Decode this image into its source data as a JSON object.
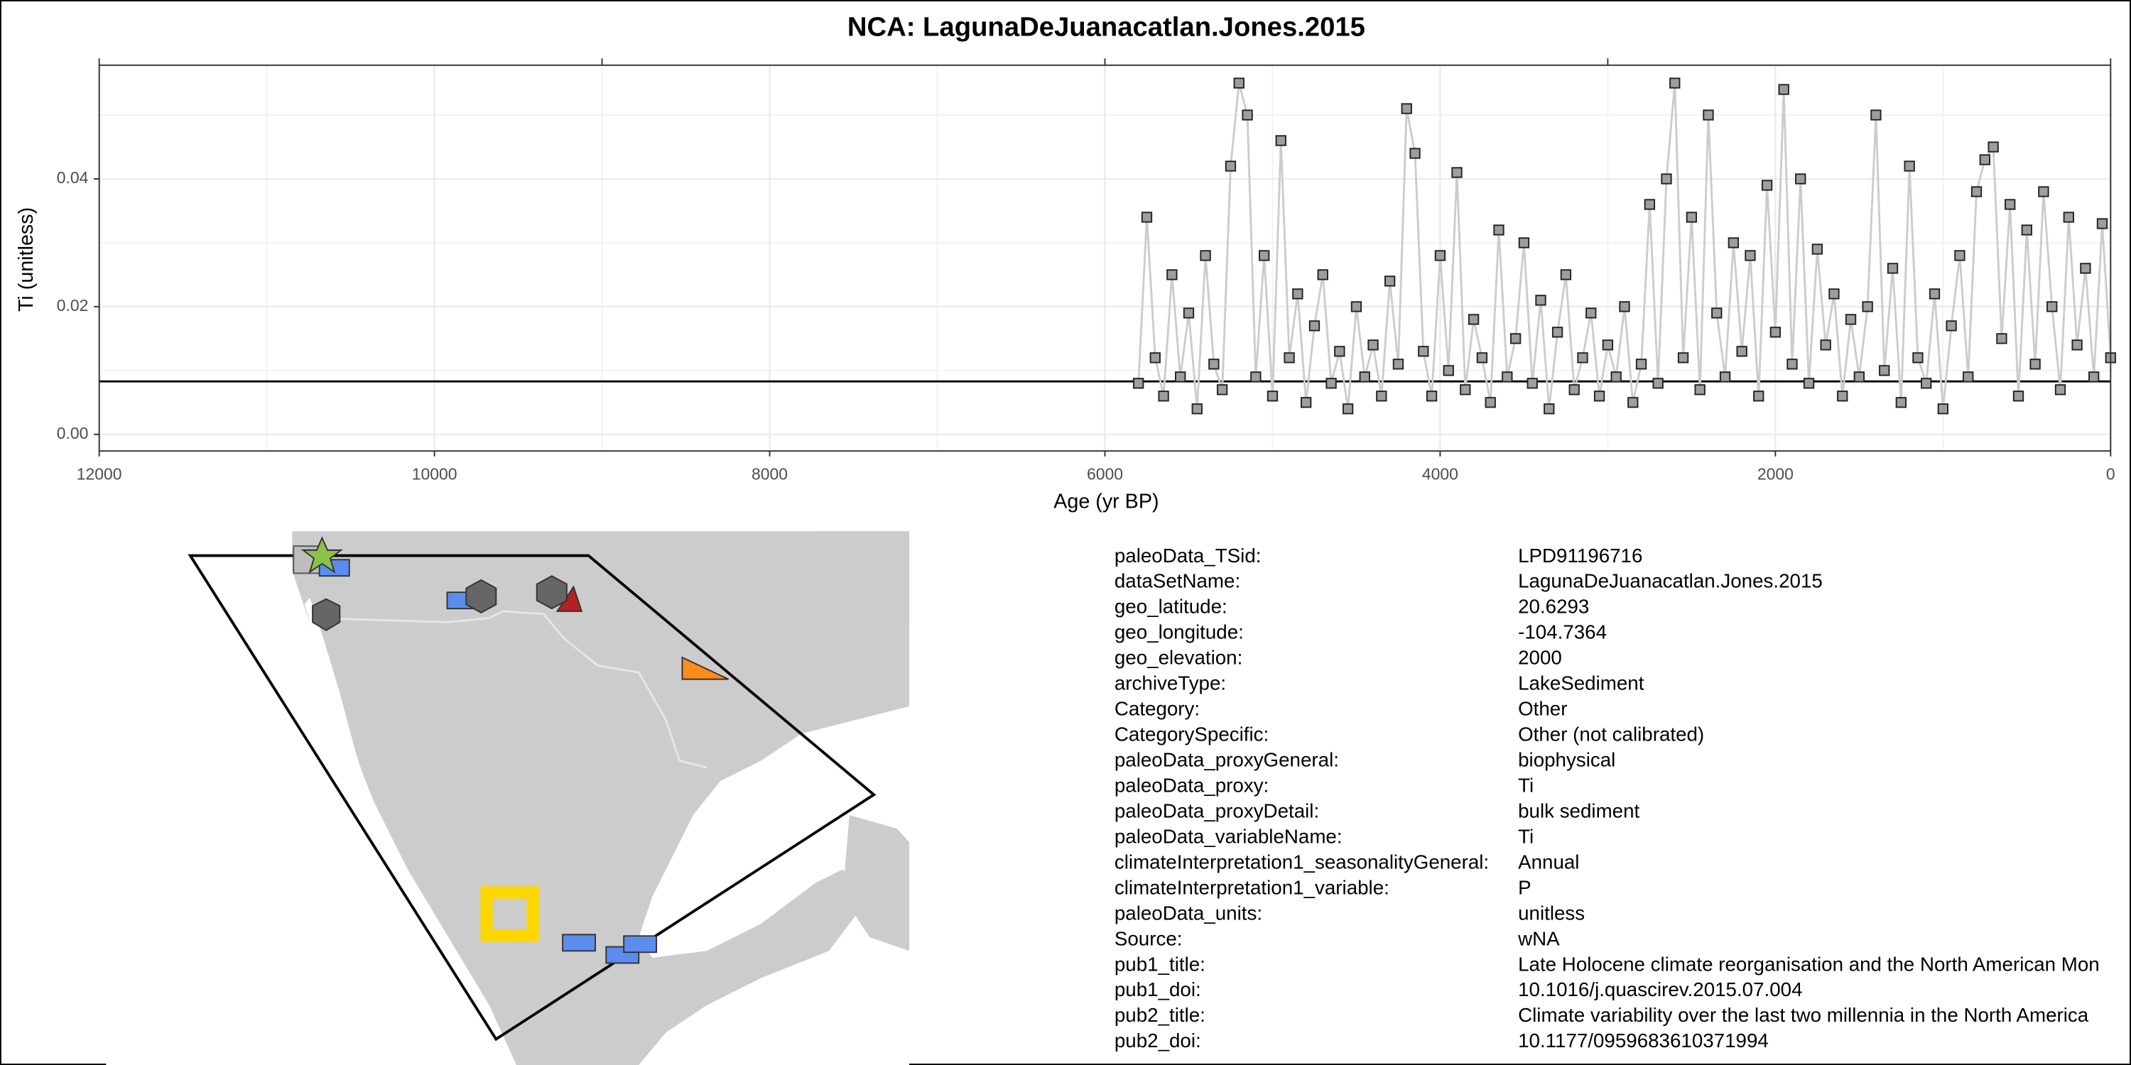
{
  "chart_data": {
    "type": "line",
    "title": "NCA: LagunaDeJuanacatlan.Jones.2015",
    "x_label": "Age (yr BP)",
    "y_label": "Ti (unitless)",
    "xlim": [
      12000,
      0
    ],
    "xticks": [
      12000,
      10000,
      8000,
      6000,
      4000,
      2000,
      0
    ],
    "top_ticks": [
      12000,
      9000,
      6000,
      3000,
      0
    ],
    "ylim": [
      -0.0026,
      0.0578
    ],
    "yticks": [
      {
        "value": 0,
        "label": "0.00"
      },
      0.02,
      0.04
    ],
    "grid": true,
    "line_color": "#cccccc",
    "color": "#9e9e9e",
    "hline": 0.0083,
    "x": [
      5800,
      5750,
      5700,
      5650,
      5600,
      5550,
      5500,
      5450,
      5400,
      5350,
      5300,
      5250,
      5200,
      5150,
      5100,
      5050,
      5000,
      4950,
      4900,
      4850,
      4800,
      4750,
      4700,
      4650,
      4600,
      4550,
      4500,
      4450,
      4400,
      4350,
      4300,
      4250,
      4200,
      4150,
      4100,
      4050,
      4000,
      3950,
      3900,
      3850,
      3800,
      3750,
      3700,
      3650,
      3600,
      3550,
      3500,
      3450,
      3400,
      3350,
      3300,
      3250,
      3200,
      3150,
      3100,
      3050,
      3000,
      2950,
      2900,
      2850,
      2800,
      2750,
      2700,
      2650,
      2600,
      2550,
      2500,
      2450,
      2400,
      2350,
      2300,
      2250,
      2200,
      2150,
      2100,
      2050,
      2000,
      1950,
      1900,
      1850,
      1800,
      1750,
      1700,
      1650,
      1600,
      1550,
      1500,
      1450,
      1400,
      1350,
      1300,
      1250,
      1200,
      1150,
      1100,
      1050,
      1000,
      950,
      900,
      850,
      800,
      750,
      700,
      650,
      600,
      550,
      500,
      450,
      400,
      350,
      300,
      250,
      200,
      150,
      100,
      50,
      0
    ],
    "values": [
      0.008,
      0.034,
      0.012,
      0.006,
      0.025,
      0.009,
      0.019,
      0.004,
      0.028,
      0.011,
      0.007,
      0.042,
      0.055,
      0.05,
      0.009,
      0.028,
      0.006,
      0.046,
      0.012,
      0.022,
      0.005,
      0.017,
      0.025,
      0.008,
      0.013,
      0.004,
      0.02,
      0.009,
      0.014,
      0.006,
      0.024,
      0.011,
      0.051,
      0.044,
      0.013,
      0.006,
      0.028,
      0.01,
      0.041,
      0.007,
      0.018,
      0.012,
      0.005,
      0.032,
      0.009,
      0.015,
      0.03,
      0.008,
      0.021,
      0.004,
      0.016,
      0.025,
      0.007,
      0.012,
      0.019,
      0.006,
      0.014,
      0.009,
      0.02,
      0.005,
      0.011,
      0.036,
      0.008,
      0.04,
      0.055,
      0.012,
      0.034,
      0.007,
      0.05,
      0.019,
      0.009,
      0.03,
      0.013,
      0.028,
      0.006,
      0.039,
      0.016,
      0.054,
      0.011,
      0.04,
      0.008,
      0.029,
      0.014,
      0.022,
      0.006,
      0.018,
      0.009,
      0.02,
      0.05,
      0.01,
      0.026,
      0.005,
      0.042,
      0.012,
      0.008,
      0.022,
      0.004,
      0.017,
      0.028,
      0.009,
      0.038,
      0.043,
      0.045,
      0.015,
      0.036,
      0.006,
      0.032,
      0.011,
      0.038,
      0.02,
      0.007,
      0.034,
      0.014,
      0.026,
      0.009,
      0.033,
      0.012
    ]
  },
  "metadata": {
    "rows": [
      [
        "paleoData_TSid:",
        "LPD91196716"
      ],
      [
        "dataSetName:",
        "LagunaDeJuanacatlan.Jones.2015"
      ],
      [
        "geo_latitude:",
        "20.6293"
      ],
      [
        "geo_longitude:",
        "-104.7364"
      ],
      [
        "geo_elevation:",
        "2000"
      ],
      [
        "archiveType:",
        "LakeSediment"
      ],
      [
        "Category:",
        "Other"
      ],
      [
        "CategorySpecific:",
        "Other (not calibrated)"
      ],
      [
        "paleoData_proxyGeneral:",
        "biophysical"
      ],
      [
        "paleoData_proxy:",
        "Ti"
      ],
      [
        "paleoData_proxyDetail:",
        "bulk sediment"
      ],
      [
        "paleoData_variableName:",
        "Ti"
      ],
      [
        "climateInterpretation1_seasonalityGeneral:",
        "Annual"
      ],
      [
        "climateInterpretation1_variable:",
        "P"
      ],
      [
        "paleoData_units:",
        "unitless"
      ],
      [
        "Source:",
        "wNA"
      ],
      [
        "pub1_title:",
        "Late Holocene climate reorganisation and the North American Mon"
      ],
      [
        "pub1_doi:",
        "10.1016/j.quascirev.2015.07.004"
      ],
      [
        "pub2_title:",
        "Climate variability over the last two millennia in the North America"
      ],
      [
        "pub2_doi:",
        "10.1177/0959683610371994"
      ]
    ]
  }
}
